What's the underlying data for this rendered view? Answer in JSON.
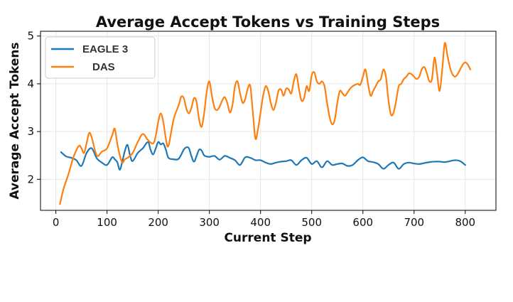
{
  "chart_data": {
    "type": "line",
    "title": "Average Accept Tokens vs Training Steps",
    "xlabel": "Current Step",
    "ylabel": "Average Accept Tokens",
    "xlim": [
      -30,
      860
    ],
    "ylim": [
      1.35,
      5.1
    ],
    "xticks": [
      0,
      100,
      200,
      300,
      400,
      500,
      600,
      700,
      800
    ],
    "yticks": [
      2,
      3,
      4,
      5
    ],
    "grid": true,
    "legend_position": "top-left",
    "series": [
      {
        "name": "EAGLE 3",
        "color": "#1f77b4",
        "x": [
          10,
          20,
          30,
          40,
          50,
          60,
          70,
          80,
          90,
          100,
          110,
          115,
          120,
          125,
          130,
          135,
          140,
          145,
          150,
          160,
          170,
          180,
          185,
          190,
          195,
          200,
          205,
          210,
          215,
          220,
          230,
          240,
          250,
          255,
          260,
          265,
          270,
          275,
          280,
          285,
          290,
          300,
          310,
          320,
          330,
          340,
          350,
          360,
          370,
          380,
          390,
          400,
          410,
          420,
          430,
          440,
          450,
          460,
          470,
          480,
          490,
          500,
          510,
          520,
          530,
          540,
          550,
          560,
          570,
          580,
          590,
          600,
          610,
          620,
          630,
          640,
          650,
          660,
          670,
          680,
          690,
          700,
          710,
          720,
          730,
          740,
          750,
          760,
          770,
          780,
          790,
          800
        ],
        "y": [
          2.57,
          2.48,
          2.45,
          2.4,
          2.28,
          2.55,
          2.65,
          2.44,
          2.35,
          2.3,
          2.46,
          2.42,
          2.36,
          2.2,
          2.38,
          2.6,
          2.72,
          2.5,
          2.38,
          2.55,
          2.65,
          2.78,
          2.62,
          2.52,
          2.64,
          2.78,
          2.73,
          2.75,
          2.62,
          2.45,
          2.42,
          2.43,
          2.62,
          2.67,
          2.65,
          2.48,
          2.37,
          2.49,
          2.62,
          2.6,
          2.5,
          2.47,
          2.49,
          2.41,
          2.49,
          2.45,
          2.4,
          2.3,
          2.46,
          2.45,
          2.4,
          2.4,
          2.35,
          2.32,
          2.35,
          2.37,
          2.38,
          2.4,
          2.3,
          2.4,
          2.45,
          2.32,
          2.38,
          2.25,
          2.38,
          2.3,
          2.32,
          2.33,
          2.28,
          2.3,
          2.4,
          2.46,
          2.38,
          2.36,
          2.32,
          2.22,
          2.3,
          2.35,
          2.22,
          2.32,
          2.35,
          2.33,
          2.32,
          2.34,
          2.36,
          2.37,
          2.37,
          2.36,
          2.38,
          2.4,
          2.38,
          2.3
        ]
      },
      {
        "name": "DAS",
        "color": "#ff7f0e",
        "x": [
          8,
          15,
          25,
          35,
          45,
          50,
          55,
          60,
          65,
          70,
          80,
          90,
          100,
          110,
          115,
          120,
          125,
          130,
          135,
          140,
          150,
          160,
          170,
          180,
          190,
          195,
          200,
          205,
          210,
          215,
          220,
          230,
          240,
          245,
          250,
          255,
          260,
          265,
          270,
          275,
          280,
          285,
          290,
          295,
          300,
          305,
          310,
          315,
          320,
          325,
          330,
          335,
          340,
          345,
          350,
          355,
          360,
          365,
          370,
          375,
          380,
          385,
          390,
          395,
          400,
          405,
          410,
          415,
          420,
          425,
          430,
          435,
          440,
          445,
          450,
          455,
          460,
          465,
          470,
          475,
          480,
          485,
          490,
          495,
          500,
          505,
          510,
          515,
          520,
          525,
          530,
          535,
          540,
          545,
          550,
          555,
          560,
          565,
          570,
          575,
          580,
          585,
          590,
          595,
          600,
          605,
          610,
          615,
          620,
          625,
          630,
          635,
          640,
          645,
          650,
          655,
          660,
          665,
          670,
          675,
          680,
          685,
          690,
          695,
          700,
          705,
          710,
          715,
          720,
          725,
          730,
          735,
          740,
          745,
          750,
          755,
          760,
          765,
          770,
          775,
          780,
          785,
          790,
          795,
          800,
          805,
          810
        ],
        "y": [
          1.48,
          1.8,
          2.12,
          2.48,
          2.7,
          2.65,
          2.55,
          2.75,
          2.97,
          2.88,
          2.5,
          2.58,
          2.65,
          2.92,
          3.06,
          2.75,
          2.5,
          2.35,
          2.42,
          2.45,
          2.55,
          2.78,
          2.95,
          2.82,
          2.75,
          2.9,
          3.2,
          3.38,
          3.2,
          2.85,
          2.7,
          3.25,
          3.55,
          3.73,
          3.7,
          3.48,
          3.38,
          3.5,
          3.7,
          3.62,
          3.25,
          3.1,
          3.4,
          3.85,
          4.05,
          3.75,
          3.5,
          3.45,
          3.52,
          3.65,
          3.72,
          3.6,
          3.4,
          3.55,
          3.95,
          4.05,
          3.8,
          3.6,
          3.68,
          3.9,
          3.95,
          3.4,
          2.85,
          3.05,
          3.4,
          3.75,
          3.95,
          3.85,
          3.6,
          3.45,
          3.6,
          3.85,
          3.88,
          3.75,
          3.9,
          3.88,
          3.8,
          4.05,
          4.2,
          3.9,
          3.65,
          3.7,
          3.95,
          3.85,
          4.18,
          4.24,
          4.05,
          4.0,
          4.05,
          3.95,
          3.6,
          3.3,
          3.15,
          3.25,
          3.6,
          3.85,
          3.8,
          3.75,
          3.82,
          3.9,
          3.95,
          3.98,
          4.0,
          3.98,
          4.15,
          4.3,
          4.0,
          3.75,
          3.85,
          3.95,
          4.05,
          4.1,
          4.3,
          4.15,
          3.65,
          3.35,
          3.4,
          3.65,
          3.95,
          4.0,
          4.1,
          4.15,
          4.22,
          4.2,
          4.15,
          4.1,
          4.15,
          4.3,
          4.35,
          4.22,
          4.05,
          4.1,
          4.55,
          4.2,
          3.85,
          4.3,
          4.85,
          4.6,
          4.35,
          4.2,
          4.15,
          4.2,
          4.3,
          4.4,
          4.45,
          4.4,
          4.3
        ]
      }
    ]
  }
}
